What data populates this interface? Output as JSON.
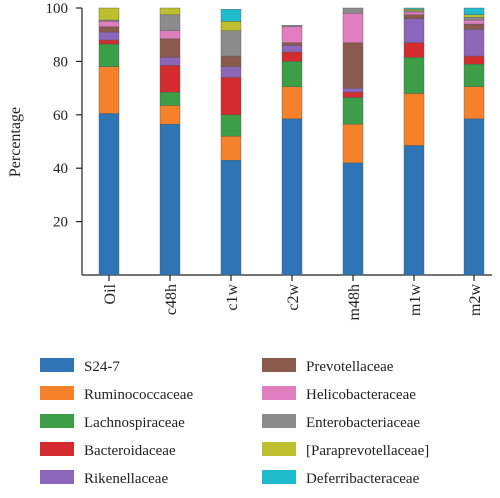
{
  "chart_data": {
    "type": "bar",
    "stacked": true,
    "title": "",
    "ylabel": "Percentage",
    "xlabel": "",
    "ylim": [
      0,
      100
    ],
    "yticks": [
      20,
      40,
      60,
      80,
      100
    ],
    "categories": [
      "Oil",
      "c48h",
      "c1w",
      "c2w",
      "m48h",
      "m1w",
      "m2w"
    ],
    "legend_position": "bottom",
    "series": [
      {
        "name": "S24-7",
        "color": "#2f75b5",
        "values": [
          60.5,
          56.5,
          43,
          58.5,
          42,
          48.5,
          58.5
        ]
      },
      {
        "name": "Ruminococcaceae",
        "color": "#f5822a",
        "values": [
          17.5,
          7,
          9,
          12,
          14.5,
          19.5,
          12
        ]
      },
      {
        "name": "Lachnospiraceae",
        "color": "#3c9e46",
        "values": [
          8.5,
          5,
          8,
          9.5,
          10,
          13.5,
          8.5
        ]
      },
      {
        "name": "Bacteroidaceae",
        "color": "#d42b2f",
        "values": [
          1.5,
          10,
          14,
          3.5,
          2,
          5.5,
          3
        ]
      },
      {
        "name": "Rikenellaceae",
        "color": "#8c66b8",
        "values": [
          3,
          3,
          4,
          2.5,
          1.5,
          9,
          10
        ]
      },
      {
        "name": "Prevotellaceae",
        "color": "#8c5a4c",
        "values": [
          2,
          7,
          4,
          1,
          17,
          1.5,
          2
        ]
      },
      {
        "name": "Helicobacteraceae",
        "color": "#e07ec0",
        "values": [
          2,
          3,
          0,
          6,
          11,
          1,
          1.5
        ]
      },
      {
        "name": "Enterobacteriaceae",
        "color": "#8c8c8c",
        "values": [
          0.5,
          6,
          9.5,
          0.5,
          2,
          0.5,
          1
        ]
      },
      {
        "name": "[Paraprevotellaceae]",
        "color": "#bcbf2e",
        "values": [
          4.5,
          2.5,
          3.5,
          0,
          0,
          0.5,
          1
        ]
      },
      {
        "name": "Deferribacteraceae",
        "color": "#1fbccd",
        "values": [
          0,
          0,
          4.5,
          0,
          0,
          0.5,
          2.5
        ]
      }
    ]
  }
}
